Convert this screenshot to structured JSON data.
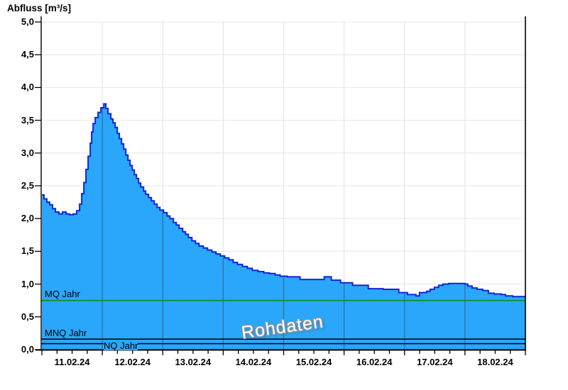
{
  "title": "Abfluss [m³/s]",
  "watermark": "Rohdaten",
  "colors": {
    "area_fill": "#2aa7fa",
    "area_line": "#1126d4",
    "mq_line": "#0e8a12",
    "ref_line": "#000000",
    "axis": "#000000",
    "hgrid": "#ececec",
    "vgrid_above": "#e6e6e6",
    "vgrid_over_fill": "#2e6f96",
    "watermark_text": "#ffffff",
    "watermark_outline": "#999999"
  },
  "chart_data": {
    "type": "area",
    "title": "Abfluss [m³/s]",
    "ylabel": "Abfluss [m³/s]",
    "ylim": [
      0,
      5
    ],
    "ytick_step": 0.5,
    "y_tick_labels": [
      "0,0",
      "0,5",
      "1,0",
      "1,5",
      "2,0",
      "2,5",
      "3,0",
      "3,5",
      "4,0",
      "4,5",
      "5,0"
    ],
    "x_labels": [
      "11.02.24",
      "12.02.24",
      "13.02.24",
      "14.02.24",
      "15.02.24",
      "16.02.24",
      "17.02.24",
      "18.02.24"
    ],
    "x_days": 8,
    "x_minor_tick_days": 0.25,
    "grid": {
      "horizontal_step": 0.5,
      "vertical": "daily"
    },
    "legend_position": "none",
    "annotations": [
      "Rohdaten"
    ],
    "reference_lines": [
      {
        "label": "MQ Jahr",
        "value": 0.75,
        "color": "#0e8a12"
      },
      {
        "label": "MNQ Jahr",
        "value": 0.16,
        "color": "#000000"
      },
      {
        "label": "NQ Jahr",
        "value": 0.09,
        "color": "#000000"
      }
    ],
    "series": [
      {
        "name": "Abfluss Rohdaten",
        "units": "m³/s",
        "x_unit": "days since 11.02.24 00:00",
        "points": [
          [
            0.0,
            2.36
          ],
          [
            0.035,
            2.3
          ],
          [
            0.082,
            2.25
          ],
          [
            0.129,
            2.21
          ],
          [
            0.176,
            2.15
          ],
          [
            0.224,
            2.1
          ],
          [
            0.282,
            2.07
          ],
          [
            0.341,
            2.1
          ],
          [
            0.4,
            2.07
          ],
          [
            0.459,
            2.06
          ],
          [
            0.518,
            2.07
          ],
          [
            0.576,
            2.12
          ],
          [
            0.624,
            2.22
          ],
          [
            0.659,
            2.38
          ],
          [
            0.694,
            2.55
          ],
          [
            0.729,
            2.75
          ],
          [
            0.765,
            2.95
          ],
          [
            0.8,
            3.15
          ],
          [
            0.824,
            3.32
          ],
          [
            0.847,
            3.45
          ],
          [
            0.882,
            3.54
          ],
          [
            0.929,
            3.62
          ],
          [
            0.976,
            3.69
          ],
          [
            1.024,
            3.75
          ],
          [
            1.059,
            3.68
          ],
          [
            1.094,
            3.6
          ],
          [
            1.141,
            3.52
          ],
          [
            1.176,
            3.46
          ],
          [
            1.212,
            3.39
          ],
          [
            1.247,
            3.3
          ],
          [
            1.282,
            3.22
          ],
          [
            1.318,
            3.14
          ],
          [
            1.353,
            3.06
          ],
          [
            1.388,
            2.97
          ],
          [
            1.424,
            2.89
          ],
          [
            1.459,
            2.81
          ],
          [
            1.494,
            2.74
          ],
          [
            1.529,
            2.67
          ],
          [
            1.565,
            2.61
          ],
          [
            1.6,
            2.54
          ],
          [
            1.635,
            2.48
          ],
          [
            1.682,
            2.42
          ],
          [
            1.718,
            2.37
          ],
          [
            1.765,
            2.32
          ],
          [
            1.812,
            2.27
          ],
          [
            1.859,
            2.22
          ],
          [
            1.906,
            2.17
          ],
          [
            1.953,
            2.13
          ],
          [
            2.012,
            2.09
          ],
          [
            2.071,
            2.04
          ],
          [
            2.118,
            2.0
          ],
          [
            2.176,
            1.94
          ],
          [
            2.224,
            1.9
          ],
          [
            2.271,
            1.85
          ],
          [
            2.329,
            1.8
          ],
          [
            2.376,
            1.76
          ],
          [
            2.424,
            1.71
          ],
          [
            2.482,
            1.66
          ],
          [
            2.541,
            1.62
          ],
          [
            2.6,
            1.58
          ],
          [
            2.671,
            1.55
          ],
          [
            2.741,
            1.52
          ],
          [
            2.812,
            1.49
          ],
          [
            2.882,
            1.46
          ],
          [
            2.953,
            1.43
          ],
          [
            3.024,
            1.4
          ],
          [
            3.094,
            1.37
          ],
          [
            3.165,
            1.33
          ],
          [
            3.235,
            1.3
          ],
          [
            3.318,
            1.27
          ],
          [
            3.4,
            1.24
          ],
          [
            3.482,
            1.21
          ],
          [
            3.576,
            1.19
          ],
          [
            3.671,
            1.17
          ],
          [
            3.765,
            1.16
          ],
          [
            3.859,
            1.14
          ],
          [
            3.941,
            1.12
          ],
          [
            4.059,
            1.11
          ],
          [
            4.271,
            1.07
          ],
          [
            4.671,
            1.11
          ],
          [
            4.788,
            1.06
          ],
          [
            4.941,
            1.02
          ],
          [
            5.141,
            0.98
          ],
          [
            5.4,
            0.93
          ],
          [
            5.647,
            0.92
          ],
          [
            5.906,
            0.87
          ],
          [
            6.047,
            0.84
          ],
          [
            6.188,
            0.82
          ],
          [
            6.247,
            0.87
          ],
          [
            6.365,
            0.89
          ],
          [
            6.424,
            0.92
          ],
          [
            6.494,
            0.95
          ],
          [
            6.565,
            0.98
          ],
          [
            6.635,
            1.0
          ],
          [
            6.729,
            1.01
          ],
          [
            6.918,
            1.01
          ],
          [
            7.0,
            1.0
          ],
          [
            7.047,
            0.97
          ],
          [
            7.118,
            0.94
          ],
          [
            7.2,
            0.92
          ],
          [
            7.294,
            0.9
          ],
          [
            7.388,
            0.86
          ],
          [
            7.482,
            0.85
          ],
          [
            7.6,
            0.84
          ],
          [
            7.671,
            0.82
          ],
          [
            7.788,
            0.81
          ],
          [
            8.0,
            0.81
          ]
        ]
      }
    ]
  }
}
